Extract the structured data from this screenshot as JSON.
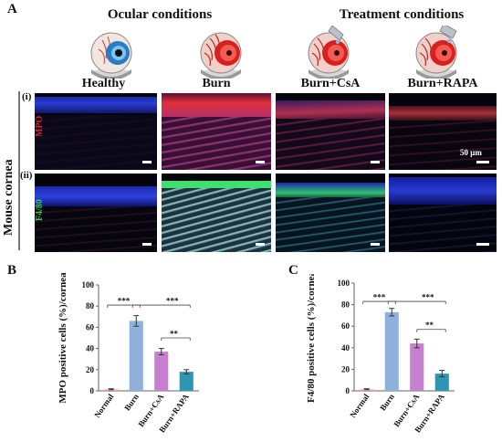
{
  "panel_a": {
    "letter": "A",
    "group_ocular": "Ocular conditions",
    "group_treatment": "Treatment conditions",
    "columns": [
      "Healthy",
      "Burn",
      "Burn+CsA",
      "Burn+RAPA"
    ],
    "rows": [
      {
        "tag": "(i)",
        "stain": "MPO",
        "stain_color": "#e8202a"
      },
      {
        "tag": "(ii)",
        "stain": "F4/80",
        "stain_color": "#2fd34a"
      }
    ],
    "side_label": "Mouse cornea",
    "scale_label": "50 μm"
  },
  "chart_data": [
    {
      "panel": "B",
      "type": "bar",
      "categories": [
        "Normal",
        "Burn",
        "Burn+CsA",
        "Burn+RAPA"
      ],
      "values": [
        1.5,
        66,
        37,
        18
      ],
      "errors": [
        0.5,
        5,
        3,
        2
      ],
      "colors": [
        "#f4a6a6",
        "#8fb1dc",
        "#c77fd0",
        "#2d97b3"
      ],
      "ylabel": "MPO positive cells (%)/cornea",
      "ylim": [
        0,
        100
      ],
      "yticks": [
        0,
        20,
        40,
        60,
        80,
        100
      ],
      "significance": [
        {
          "from": 0,
          "to": 1,
          "label": "***"
        },
        {
          "from": 1,
          "to": 3,
          "label": "***"
        },
        {
          "from": 2,
          "to": 3,
          "label": "**"
        }
      ]
    },
    {
      "panel": "C",
      "type": "bar",
      "categories": [
        "Normal",
        "Burn",
        "Burn+CsA",
        "Burn+RAPA"
      ],
      "values": [
        1.5,
        73,
        44,
        16
      ],
      "errors": [
        0.5,
        3.5,
        4,
        3
      ],
      "colors": [
        "#f4a6a6",
        "#8fb1dc",
        "#c77fd0",
        "#2d97b3"
      ],
      "ylabel": "F4/80 positive cells (%)/cornea",
      "ylim": [
        0,
        100
      ],
      "yticks": [
        0,
        20,
        40,
        60,
        80,
        100
      ],
      "significance": [
        {
          "from": 0,
          "to": 1,
          "label": "***"
        },
        {
          "from": 1,
          "to": 3,
          "label": "***"
        },
        {
          "from": 2,
          "to": 3,
          "label": "**"
        }
      ]
    }
  ]
}
